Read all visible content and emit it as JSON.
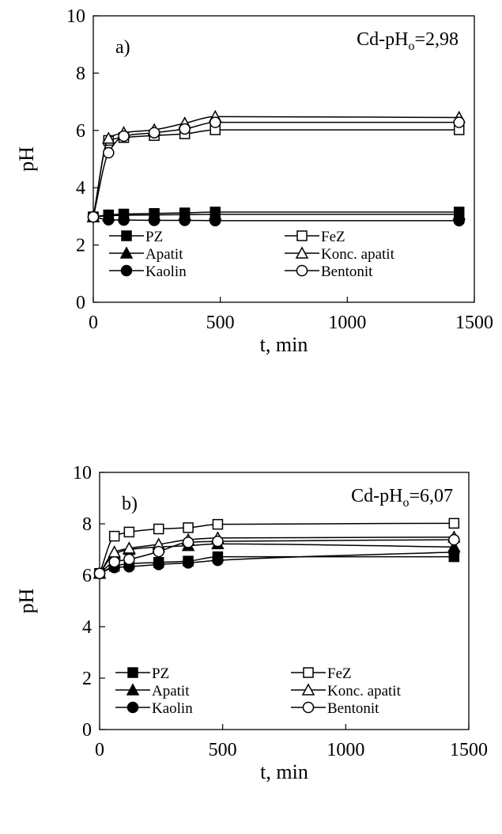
{
  "chart_data": [
    {
      "type": "line",
      "panel_label": "a)",
      "annotation": {
        "prefix": "Cd-pH",
        "sub": "o",
        "suffix": "=2,98"
      },
      "xlabel": "t, min",
      "ylabel": "pH",
      "xlim": [
        0,
        1500
      ],
      "ylim": [
        0,
        10
      ],
      "xticks": [
        0,
        500,
        1000,
        1500
      ],
      "yticks": [
        0,
        2,
        4,
        6,
        8,
        10
      ],
      "grid": false,
      "legend_position": "bottom, inside plot, two columns",
      "x": [
        0,
        60,
        120,
        240,
        360,
        480,
        1440
      ],
      "series": [
        {
          "name": "PZ",
          "marker": "square-filled",
          "values": [
            2.98,
            3.05,
            3.08,
            3.1,
            3.12,
            3.15,
            3.15
          ]
        },
        {
          "name": "FeZ",
          "marker": "square-open",
          "values": [
            2.98,
            5.65,
            5.75,
            5.82,
            5.88,
            6.02,
            6.02
          ]
        },
        {
          "name": "Apatit",
          "marker": "triangle-filled",
          "values": [
            2.98,
            3.02,
            3.04,
            3.05,
            3.06,
            3.07,
            3.07
          ]
        },
        {
          "name": "Konc. apatit",
          "marker": "triangle-open",
          "values": [
            2.98,
            5.72,
            5.92,
            6.02,
            6.25,
            6.48,
            6.45
          ]
        },
        {
          "name": "Kaolin",
          "marker": "circle-filled",
          "values": [
            2.98,
            2.88,
            2.87,
            2.86,
            2.86,
            2.85,
            2.85
          ]
        },
        {
          "name": "Bentonit",
          "marker": "circle-open",
          "values": [
            2.98,
            5.22,
            5.8,
            5.92,
            6.05,
            6.28,
            6.28
          ]
        }
      ]
    },
    {
      "type": "line",
      "panel_label": "b)",
      "annotation": {
        "prefix": "Cd-pH",
        "sub": "o",
        "suffix": "=6,07"
      },
      "xlabel": "t, min",
      "ylabel": "pH",
      "xlim": [
        0,
        1500
      ],
      "ylim": [
        0,
        10
      ],
      "xticks": [
        0,
        500,
        1000,
        1500
      ],
      "yticks": [
        0,
        2,
        4,
        6,
        8,
        10
      ],
      "grid": false,
      "legend_position": "bottom, inside plot, two columns",
      "x": [
        0,
        60,
        120,
        240,
        360,
        480,
        1440
      ],
      "series": [
        {
          "name": "PZ",
          "marker": "square-filled",
          "values": [
            6.07,
            6.35,
            6.45,
            6.5,
            6.55,
            6.72,
            6.72
          ]
        },
        {
          "name": "FeZ",
          "marker": "square-open",
          "values": [
            6.07,
            7.52,
            7.68,
            7.8,
            7.85,
            7.98,
            8.02
          ]
        },
        {
          "name": "Apatit",
          "marker": "triangle-filled",
          "values": [
            6.07,
            6.82,
            7.0,
            7.1,
            7.15,
            7.22,
            7.1
          ]
        },
        {
          "name": "Konc. apatit",
          "marker": "triangle-open",
          "values": [
            6.07,
            6.9,
            7.05,
            7.2,
            7.38,
            7.45,
            7.48
          ]
        },
        {
          "name": "Kaolin",
          "marker": "circle-filled",
          "values": [
            6.07,
            6.3,
            6.33,
            6.42,
            6.48,
            6.58,
            6.9
          ]
        },
        {
          "name": "Bentonit",
          "marker": "circle-open",
          "values": [
            6.07,
            6.52,
            6.62,
            6.92,
            7.28,
            7.32,
            7.38
          ]
        }
      ]
    }
  ]
}
